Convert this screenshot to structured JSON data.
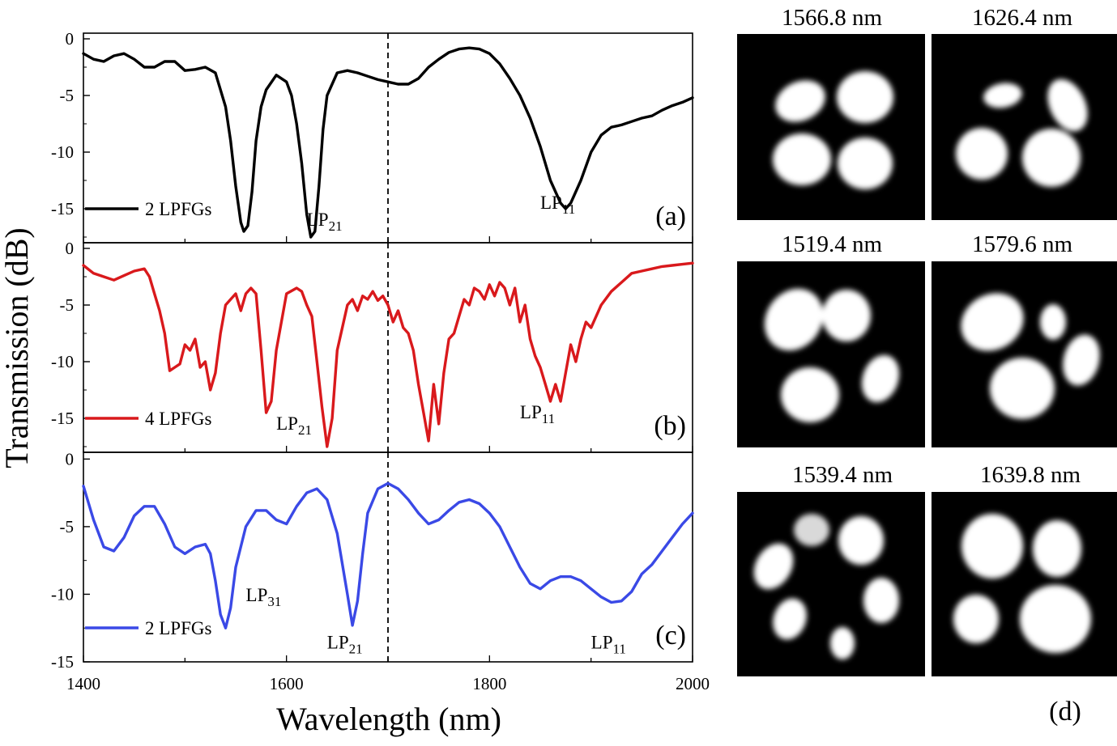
{
  "chart_data": {
    "type": "line",
    "x_axis": {
      "label": "Wavelength (nm)",
      "range": [
        1400,
        2000
      ],
      "ticks": [
        1400,
        1600,
        1800,
        2000
      ]
    },
    "y_axis_label": "Transmission (dB)",
    "marker_line_x": 1700,
    "panels": [
      {
        "id": "a",
        "panel_label": "(a)",
        "legend": "2 LPFGs",
        "color": "#000000",
        "ylim": [
          -18,
          0.5
        ],
        "yticks": [
          "0",
          "-5",
          "-10",
          "-15"
        ],
        "ytick_values": [
          0,
          -5,
          -10,
          -15
        ],
        "mode_labels": [
          {
            "base": "LP",
            "sub": "21",
            "x": 1620,
            "y": -16.5
          },
          {
            "base": "LP",
            "sub": "11",
            "x": 1850,
            "y": -15
          }
        ],
        "series": {
          "x": [
            1400,
            1410,
            1420,
            1430,
            1440,
            1450,
            1460,
            1470,
            1480,
            1490,
            1500,
            1510,
            1520,
            1530,
            1540,
            1545,
            1550,
            1555,
            1558,
            1562,
            1566,
            1570,
            1575,
            1580,
            1590,
            1600,
            1605,
            1610,
            1615,
            1620,
            1624,
            1628,
            1632,
            1636,
            1640,
            1650,
            1660,
            1670,
            1680,
            1690,
            1700,
            1710,
            1720,
            1730,
            1740,
            1750,
            1760,
            1770,
            1780,
            1790,
            1800,
            1810,
            1820,
            1830,
            1840,
            1850,
            1860,
            1870,
            1875,
            1880,
            1890,
            1900,
            1910,
            1920,
            1930,
            1940,
            1950,
            1960,
            1970,
            1980,
            1990,
            2000
          ],
          "y": [
            -1.3,
            -1.8,
            -2.0,
            -1.5,
            -1.3,
            -1.8,
            -2.5,
            -2.5,
            -2.0,
            -2.0,
            -2.8,
            -2.7,
            -2.5,
            -3.0,
            -6.0,
            -9.0,
            -13.0,
            -16.2,
            -17.0,
            -16.5,
            -13.5,
            -9.0,
            -6.0,
            -4.5,
            -3.2,
            -3.8,
            -5.0,
            -7.5,
            -11.0,
            -15.5,
            -17.5,
            -17.0,
            -13.0,
            -8.0,
            -5.0,
            -3.0,
            -2.8,
            -3.0,
            -3.3,
            -3.6,
            -3.8,
            -4.0,
            -4.0,
            -3.5,
            -2.5,
            -1.8,
            -1.2,
            -0.9,
            -0.8,
            -0.9,
            -1.3,
            -2.2,
            -3.5,
            -5.0,
            -7.0,
            -9.5,
            -12.5,
            -14.5,
            -15.0,
            -14.5,
            -12.5,
            -10.0,
            -8.5,
            -7.8,
            -7.6,
            -7.3,
            -7.0,
            -6.8,
            -6.3,
            -5.9,
            -5.6,
            -5.2
          ]
        }
      },
      {
        "id": "b",
        "panel_label": "(b)",
        "legend": "4 LPFGs",
        "color": "#d9191c",
        "ylim": [
          -18,
          0.5
        ],
        "yticks": [
          "0",
          "-5",
          "-10",
          "-15"
        ],
        "ytick_values": [
          0,
          -5,
          -10,
          -15
        ],
        "mode_labels": [
          {
            "base": "LP",
            "sub": "21",
            "x": 1590,
            "y": -16
          },
          {
            "base": "LP",
            "sub": "11",
            "x": 1830,
            "y": -15
          }
        ],
        "series": {
          "x": [
            1400,
            1410,
            1420,
            1430,
            1440,
            1450,
            1460,
            1465,
            1470,
            1475,
            1480,
            1485,
            1490,
            1495,
            1500,
            1505,
            1510,
            1515,
            1520,
            1525,
            1530,
            1535,
            1540,
            1545,
            1550,
            1555,
            1560,
            1565,
            1570,
            1575,
            1580,
            1585,
            1590,
            1595,
            1600,
            1610,
            1615,
            1620,
            1625,
            1630,
            1635,
            1640,
            1645,
            1650,
            1655,
            1660,
            1665,
            1670,
            1675,
            1680,
            1685,
            1690,
            1695,
            1700,
            1705,
            1710,
            1715,
            1720,
            1725,
            1730,
            1735,
            1740,
            1745,
            1750,
            1755,
            1760,
            1765,
            1770,
            1775,
            1780,
            1785,
            1790,
            1795,
            1800,
            1805,
            1810,
            1815,
            1820,
            1825,
            1830,
            1835,
            1840,
            1845,
            1850,
            1855,
            1860,
            1865,
            1870,
            1875,
            1880,
            1885,
            1890,
            1895,
            1900,
            1910,
            1920,
            1930,
            1940,
            1950,
            1960,
            1970,
            1980,
            1990,
            2000
          ],
          "y": [
            -1.5,
            -2.2,
            -2.5,
            -2.8,
            -2.4,
            -2.0,
            -1.8,
            -2.5,
            -4.0,
            -5.5,
            -7.5,
            -10.8,
            -10.5,
            -10.2,
            -8.5,
            -9.0,
            -8.0,
            -10.5,
            -10.0,
            -12.5,
            -11.0,
            -7.5,
            -5.0,
            -4.5,
            -4.0,
            -5.5,
            -4.0,
            -3.5,
            -4.0,
            -9.0,
            -14.5,
            -13.5,
            -9.0,
            -6.5,
            -4.0,
            -3.5,
            -3.8,
            -5.0,
            -6.0,
            -10.0,
            -14.0,
            -17.5,
            -15.0,
            -9.0,
            -7.0,
            -5.0,
            -4.5,
            -5.5,
            -4.2,
            -4.5,
            -3.8,
            -4.6,
            -4.2,
            -5.0,
            -6.5,
            -5.5,
            -7.0,
            -7.5,
            -9.0,
            -12.0,
            -14.5,
            -17.0,
            -12.0,
            -15.5,
            -11.0,
            -8.0,
            -7.5,
            -6.0,
            -4.5,
            -5.0,
            -3.5,
            -3.8,
            -4.5,
            -3.2,
            -4.2,
            -3.0,
            -3.5,
            -5.0,
            -3.5,
            -6.5,
            -5.0,
            -8.0,
            -9.5,
            -10.5,
            -12.0,
            -13.5,
            -12.0,
            -13.5,
            -11.0,
            -8.5,
            -10.0,
            -8.0,
            -6.5,
            -7.0,
            -5.0,
            -3.8,
            -3.0,
            -2.2,
            -2.0,
            -1.8,
            -1.6,
            -1.5,
            -1.4,
            -1.3
          ]
        }
      },
      {
        "id": "c",
        "panel_label": "(c)",
        "legend": "2 LPFGs",
        "color": "#3a49e6",
        "ylim": [
          -15,
          0.5
        ],
        "yticks": [
          "0",
          "-5",
          "-10",
          "-15"
        ],
        "ytick_values": [
          0,
          -5,
          -10,
          -15
        ],
        "mode_labels": [
          {
            "base": "LP",
            "sub": "31",
            "x": 1560,
            "y": -10.5
          },
          {
            "base": "LP",
            "sub": "21",
            "x": 1640,
            "y": -14
          },
          {
            "base": "LP",
            "sub": "11",
            "x": 1900,
            "y": -14
          }
        ],
        "series": {
          "x": [
            1400,
            1410,
            1420,
            1430,
            1440,
            1450,
            1460,
            1470,
            1480,
            1490,
            1500,
            1510,
            1520,
            1525,
            1530,
            1535,
            1540,
            1545,
            1550,
            1560,
            1570,
            1580,
            1590,
            1600,
            1610,
            1620,
            1630,
            1640,
            1650,
            1660,
            1665,
            1670,
            1675,
            1680,
            1690,
            1700,
            1710,
            1720,
            1730,
            1740,
            1750,
            1760,
            1770,
            1780,
            1790,
            1800,
            1810,
            1820,
            1830,
            1840,
            1850,
            1860,
            1870,
            1880,
            1890,
            1900,
            1910,
            1920,
            1930,
            1940,
            1950,
            1960,
            1970,
            1980,
            1990,
            2000
          ],
          "y": [
            -2.0,
            -4.5,
            -6.5,
            -6.8,
            -5.8,
            -4.2,
            -3.5,
            -3.5,
            -4.8,
            -6.5,
            -7.0,
            -6.5,
            -6.3,
            -7.0,
            -9.0,
            -11.5,
            -12.5,
            -11.0,
            -8.0,
            -5.0,
            -3.8,
            -3.8,
            -4.5,
            -4.8,
            -3.5,
            -2.5,
            -2.2,
            -3.0,
            -5.5,
            -10.0,
            -12.3,
            -10.5,
            -7.0,
            -4.0,
            -2.2,
            -1.8,
            -2.2,
            -3.0,
            -4.0,
            -4.8,
            -4.5,
            -3.8,
            -3.2,
            -3.0,
            -3.3,
            -4.0,
            -5.0,
            -6.5,
            -8.0,
            -9.2,
            -9.6,
            -9.0,
            -8.7,
            -8.7,
            -9.0,
            -9.6,
            -10.2,
            -10.6,
            -10.5,
            -9.8,
            -8.5,
            -7.8,
            -6.8,
            -5.8,
            -4.8,
            -4.0
          ]
        }
      }
    ],
    "mode_images": {
      "panel_label": "(d)",
      "titles": [
        "1566.8 nm",
        "1626.4 nm",
        "1519.4 nm",
        "1579.6 nm",
        "1539.4 nm",
        "1639.8 nm"
      ]
    }
  }
}
